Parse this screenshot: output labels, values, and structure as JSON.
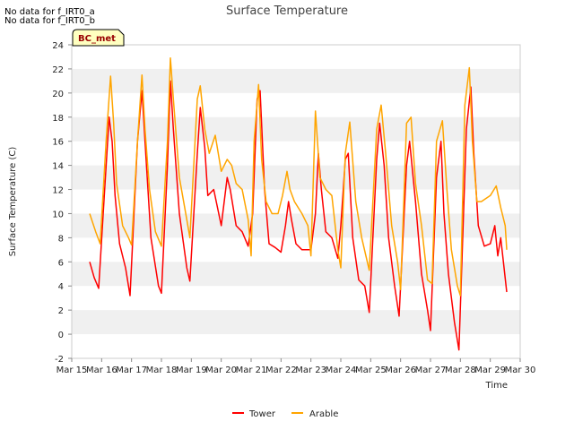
{
  "notes": [
    "No data for f_IRT0_a",
    "No data for f_IRT0_b"
  ],
  "chart_data": {
    "type": "line",
    "title": "Surface Temperature",
    "xlabel": "Time",
    "ylabel": "Surface Temperature (C)",
    "badge": "BC_met",
    "ylim": [
      -2,
      24
    ],
    "yticks": [
      -2,
      0,
      2,
      4,
      6,
      8,
      10,
      12,
      14,
      16,
      18,
      20,
      22,
      24
    ],
    "xlim": [
      0,
      15
    ],
    "xticks": [
      "Mar 15",
      "Mar 16",
      "Mar 17",
      "Mar 18",
      "Mar 19",
      "Mar 20",
      "Mar 21",
      "Mar 22",
      "Mar 23",
      "Mar 24",
      "Mar 25",
      "Mar 26",
      "Mar 27",
      "Mar 28",
      "Mar 29",
      "Mar 30"
    ],
    "grid": "horizontal bands",
    "legend_position": "bottom-center",
    "series": [
      {
        "name": "Tower",
        "color": "#ff0000",
        "x": [
          0.6,
          0.75,
          0.9,
          1.1,
          1.25,
          1.35,
          1.45,
          1.6,
          1.8,
          1.95,
          2.2,
          2.35,
          2.5,
          2.65,
          2.9,
          3.0,
          3.2,
          3.3,
          3.4,
          3.6,
          3.85,
          3.95,
          4.2,
          4.3,
          4.45,
          4.55,
          4.75,
          5.0,
          5.2,
          5.3,
          5.5,
          5.7,
          5.9,
          6.05,
          6.2,
          6.3,
          6.45,
          6.6,
          6.8,
          7.0,
          7.15,
          7.25,
          7.35,
          7.5,
          7.7,
          8.0,
          8.15,
          8.25,
          8.35,
          8.5,
          8.7,
          8.9,
          9.0,
          9.15,
          9.25,
          9.4,
          9.6,
          9.8,
          9.95,
          10.2,
          10.3,
          10.45,
          10.6,
          10.8,
          10.95,
          11.2,
          11.3,
          11.5,
          11.7,
          11.9,
          12.0,
          12.2,
          12.35,
          12.45,
          12.6,
          12.8,
          12.95,
          13.2,
          13.35,
          13.45,
          13.6,
          13.8,
          14.0,
          14.15,
          14.25,
          14.35,
          14.55
        ],
        "values": [
          6.0,
          4.7,
          3.8,
          12.0,
          18.0,
          16.0,
          11.5,
          7.5,
          5.5,
          3.2,
          16.0,
          20.2,
          14.0,
          8.0,
          4.0,
          3.4,
          14.0,
          21.0,
          17.0,
          10.0,
          5.5,
          4.4,
          15.0,
          18.8,
          15.5,
          11.5,
          12.0,
          9.0,
          13.0,
          12.0,
          9.0,
          8.5,
          7.3,
          10.0,
          19.5,
          20.2,
          12.0,
          7.5,
          7.2,
          6.8,
          9.0,
          11.0,
          9.5,
          7.5,
          7.0,
          7.0,
          10.0,
          15.0,
          12.0,
          8.5,
          8.0,
          6.3,
          9.0,
          14.5,
          15.0,
          8.0,
          4.5,
          4.0,
          1.8,
          14.5,
          17.5,
          14.0,
          8.0,
          4.0,
          1.5,
          14.0,
          16.0,
          11.0,
          5.0,
          2.0,
          0.3,
          13.0,
          16.0,
          10.0,
          5.0,
          1.0,
          -1.3,
          17.0,
          20.5,
          15.0,
          9.0,
          7.3,
          7.5,
          9.0,
          6.5,
          8.0,
          3.5
        ]
      },
      {
        "name": "Arable",
        "color": "#ffa500",
        "x": [
          0.6,
          0.8,
          0.95,
          1.15,
          1.3,
          1.4,
          1.5,
          1.7,
          1.9,
          2.0,
          2.2,
          2.35,
          2.45,
          2.6,
          2.8,
          3.0,
          3.2,
          3.3,
          3.4,
          3.6,
          3.85,
          3.95,
          4.2,
          4.3,
          4.45,
          4.6,
          4.8,
          5.0,
          5.2,
          5.35,
          5.5,
          5.7,
          5.9,
          6.0,
          6.1,
          6.25,
          6.35,
          6.5,
          6.7,
          6.9,
          7.05,
          7.2,
          7.3,
          7.45,
          7.7,
          7.9,
          8.0,
          8.15,
          8.3,
          8.5,
          8.7,
          8.9,
          9.0,
          9.15,
          9.3,
          9.5,
          9.7,
          9.95,
          10.2,
          10.35,
          10.5,
          10.7,
          10.9,
          11.0,
          11.2,
          11.35,
          11.5,
          11.7,
          11.9,
          12.05,
          12.2,
          12.4,
          12.55,
          12.7,
          12.9,
          13.0,
          13.15,
          13.3,
          13.4,
          13.55,
          13.7,
          14.0,
          14.2,
          14.35,
          14.5,
          14.55
        ],
        "values": [
          10.0,
          8.5,
          7.5,
          16.0,
          21.4,
          17.5,
          12.5,
          9.0,
          8.0,
          7.4,
          16.0,
          21.5,
          17.0,
          12.0,
          8.5,
          7.3,
          16.0,
          22.9,
          19.5,
          13.0,
          9.5,
          8.0,
          19.5,
          20.6,
          17.0,
          15.0,
          16.5,
          13.5,
          14.5,
          14.0,
          12.5,
          12.0,
          9.5,
          6.5,
          16.0,
          20.7,
          14.5,
          11.0,
          10.0,
          10.0,
          11.5,
          13.5,
          12.0,
          11.0,
          10.0,
          9.0,
          6.5,
          18.5,
          13.0,
          12.0,
          11.5,
          7.0,
          5.5,
          15.0,
          17.6,
          11.0,
          8.0,
          5.3,
          17.0,
          19.0,
          15.0,
          9.0,
          6.0,
          3.7,
          17.5,
          18.0,
          12.5,
          9.0,
          4.5,
          4.2,
          16.0,
          17.7,
          12.0,
          7.0,
          4.0,
          3.2,
          19.0,
          22.1,
          16.0,
          11.0,
          11.0,
          11.5,
          12.3,
          10.5,
          9.0,
          7.0
        ]
      }
    ]
  }
}
